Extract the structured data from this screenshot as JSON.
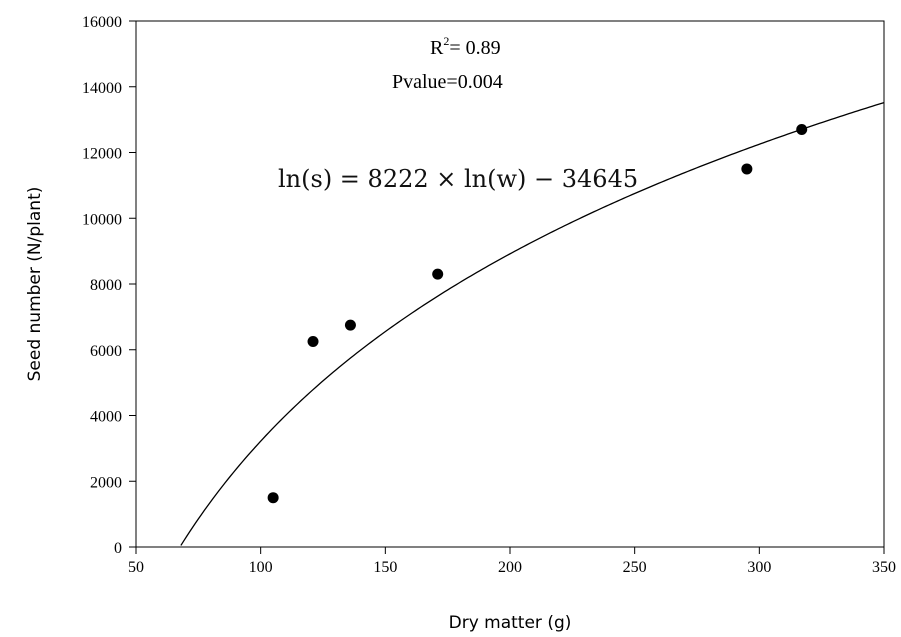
{
  "chart_data": {
    "type": "scatter",
    "xlabel": "Dry matter (g)",
    "ylabel": "Seed number (N/plant)",
    "xlim": [
      50,
      350
    ],
    "ylim": [
      0,
      16000
    ],
    "x_ticks": [
      50,
      100,
      150,
      200,
      250,
      300,
      350
    ],
    "y_ticks": [
      0,
      2000,
      4000,
      6000,
      8000,
      10000,
      12000,
      14000,
      16000
    ],
    "points": [
      {
        "x": 105,
        "y": 1500
      },
      {
        "x": 121,
        "y": 6250
      },
      {
        "x": 136,
        "y": 6750
      },
      {
        "x": 171,
        "y": 8300
      },
      {
        "x": 295,
        "y": 11500
      },
      {
        "x": 317,
        "y": 12700
      }
    ],
    "fit": {
      "a": 8222,
      "b": -34645,
      "x_start": 68,
      "x_end": 350
    },
    "annotations": {
      "r2_prefix": "R",
      "r2_sup": "2",
      "r2_value": "= 0.89",
      "pvalue": "Pvalue=0.004",
      "equation": "ln(s) = 8222 × ln(w) − 34645"
    },
    "grid": false,
    "legend": "none"
  }
}
